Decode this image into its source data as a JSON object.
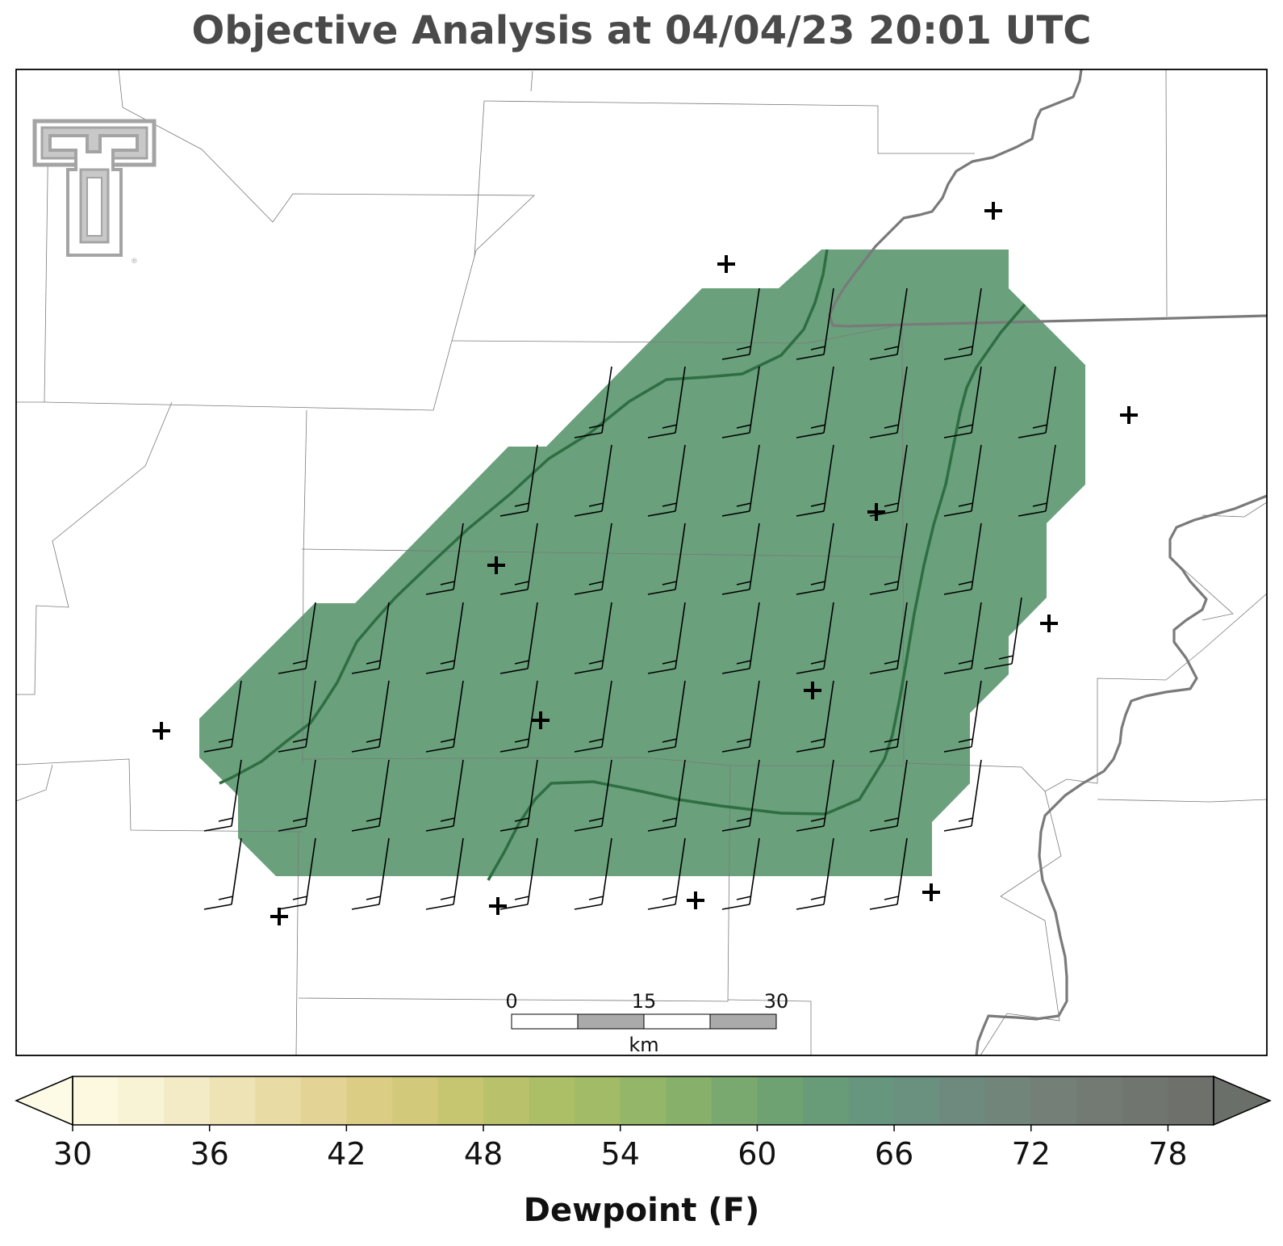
{
  "title": "Objective Analysis at 04/04/23 20:01 UTC",
  "colorbar": {
    "label": "Dewpoint (F)",
    "min": 30,
    "max": 80,
    "step": 2,
    "ticks": [
      "30",
      "36",
      "42",
      "48",
      "54",
      "60",
      "66",
      "72",
      "78"
    ],
    "colors": [
      "#fcf9e0",
      "#f8f3d4",
      "#f3ebc5",
      "#eee3b5",
      "#e9dba4",
      "#e3d394",
      "#dccd85",
      "#d3c97b",
      "#c6c670",
      "#b9c26a",
      "#adbf66",
      "#a1bb66",
      "#94b668",
      "#87b06b",
      "#7aa96f",
      "#6fa273",
      "#689c79",
      "#66967e",
      "#6a9080",
      "#6e8a7e",
      "#72857b",
      "#737f77",
      "#727a73",
      "#707570",
      "#6e706c"
    ],
    "over_color": "#6b6f6a",
    "under_color": "#fdfbe6"
  },
  "scale_bar": {
    "ticks": [
      "0",
      "15",
      "30"
    ],
    "unit": "km"
  },
  "analysis": {
    "fill_color": "#6aa07c",
    "dewpoint_contour_color": "#2e6e42",
    "barb_color": "#000000",
    "station_marker": "plus-icon"
  },
  "logo": {
    "name": "Texas Tech double-T logo",
    "color": "#a4a4a4"
  }
}
